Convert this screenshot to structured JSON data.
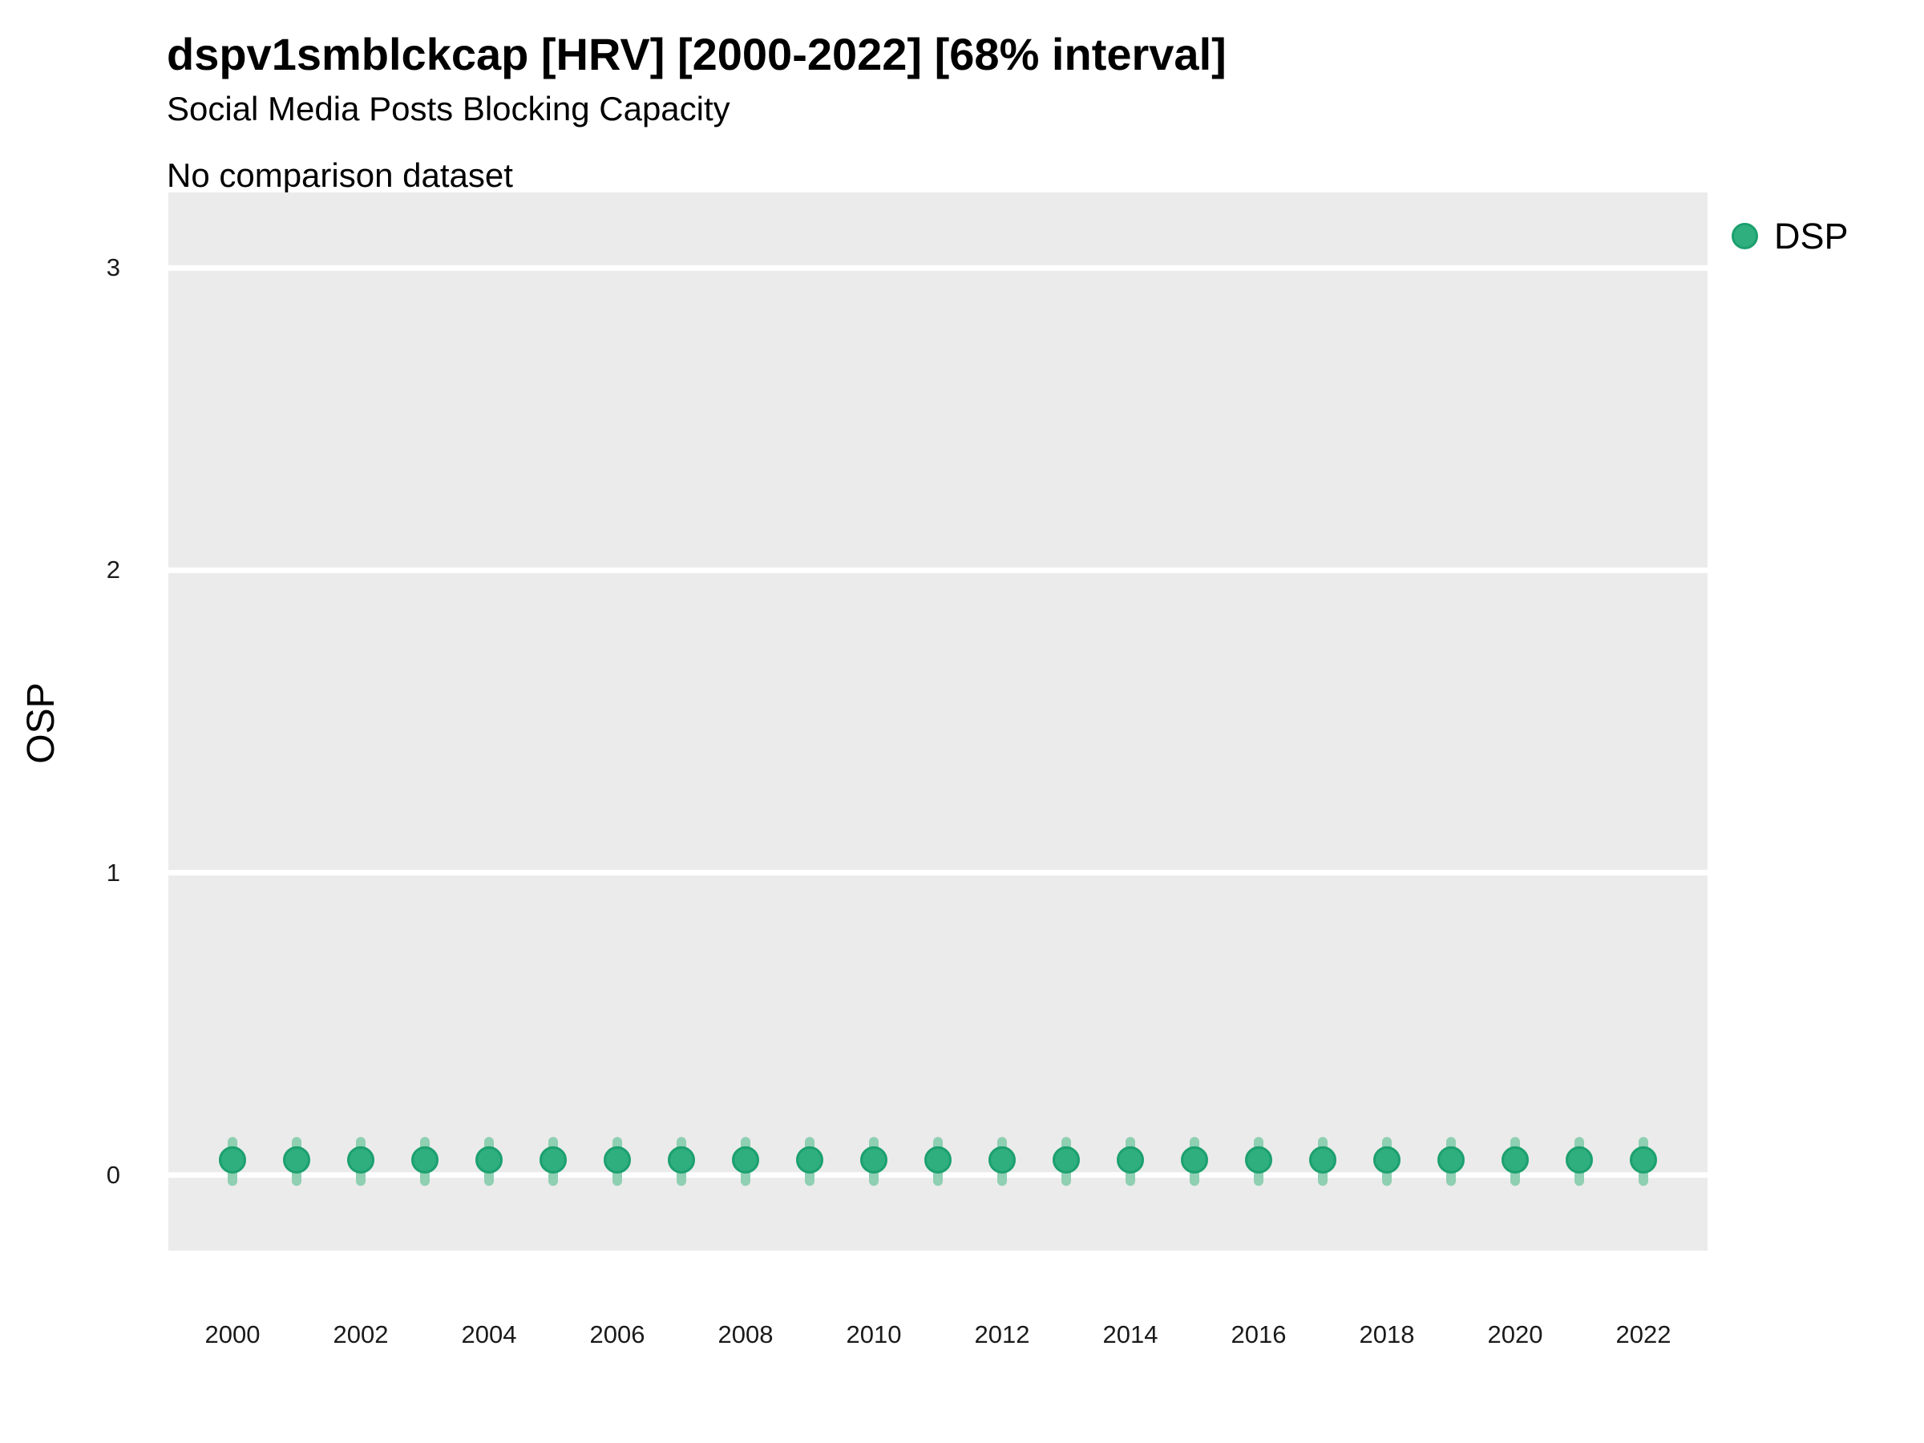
{
  "colors": {
    "panel_background": "#EBEBEB",
    "grid_line": "#FFFFFF",
    "point_fill": "#2FAE7E",
    "point_stroke": "#1CA06F",
    "interval_bar": "#8FCFB2",
    "tick_text": "#1a1a1a",
    "title_text": "#000000"
  },
  "chart_data": {
    "type": "scatter",
    "title": "dspv1smblckcap [HRV] [2000-2022] [68% interval]",
    "subtitle": "Social Media Posts Blocking Capacity",
    "caption": "No comparison dataset",
    "xlabel": "",
    "ylabel": "OSP",
    "xlim": [
      1999,
      2023
    ],
    "ylim": [
      -0.25,
      3.25
    ],
    "x_ticks": [
      2000,
      2002,
      2004,
      2006,
      2008,
      2010,
      2012,
      2014,
      2016,
      2018,
      2020,
      2022
    ],
    "y_ticks": [
      0,
      1,
      2,
      3
    ],
    "grid": "major-horizontal-only",
    "legend_position": "right",
    "interval_level": "68%",
    "series": [
      {
        "name": "DSP",
        "x": [
          2000,
          2001,
          2002,
          2003,
          2004,
          2005,
          2006,
          2007,
          2008,
          2009,
          2010,
          2011,
          2012,
          2013,
          2014,
          2015,
          2016,
          2017,
          2018,
          2019,
          2020,
          2021,
          2022
        ],
        "median": [
          0.05,
          0.05,
          0.05,
          0.05,
          0.05,
          0.05,
          0.05,
          0.05,
          0.05,
          0.05,
          0.05,
          0.05,
          0.05,
          0.05,
          0.05,
          0.05,
          0.05,
          0.05,
          0.05,
          0.05,
          0.05,
          0.05,
          0.05
        ],
        "lo68": [
          -0.02,
          -0.02,
          -0.02,
          -0.02,
          -0.02,
          -0.02,
          -0.02,
          -0.02,
          -0.02,
          -0.02,
          -0.02,
          -0.02,
          -0.02,
          -0.02,
          -0.02,
          -0.02,
          -0.02,
          -0.02,
          -0.02,
          -0.02,
          -0.02,
          -0.02,
          -0.02
        ],
        "hi68": [
          0.11,
          0.11,
          0.11,
          0.11,
          0.11,
          0.11,
          0.11,
          0.11,
          0.11,
          0.11,
          0.11,
          0.11,
          0.11,
          0.11,
          0.11,
          0.11,
          0.11,
          0.11,
          0.11,
          0.11,
          0.11,
          0.11,
          0.11
        ]
      }
    ]
  }
}
